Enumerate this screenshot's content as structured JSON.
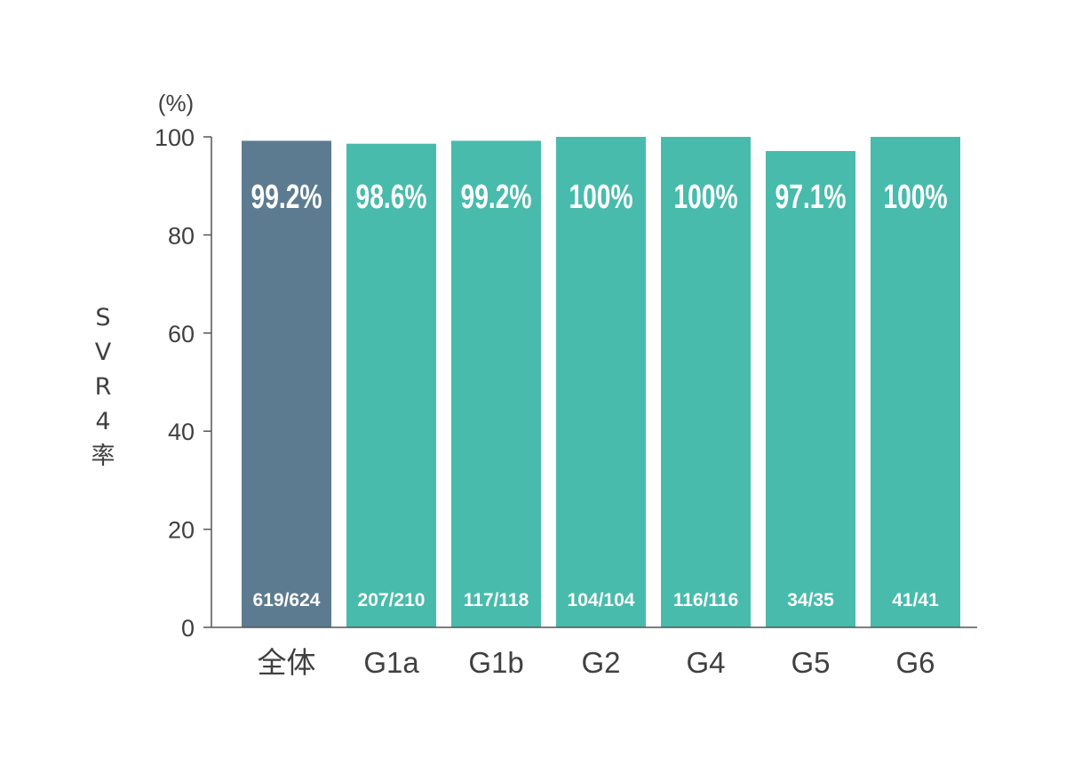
{
  "chart_data": {
    "type": "bar",
    "unit": "(%)",
    "ylabel": "SVR4率",
    "ylim": [
      0,
      100
    ],
    "yticks": [
      0,
      20,
      40,
      60,
      80,
      100
    ],
    "categories": [
      "全体",
      "G1a",
      "G1b",
      "G2",
      "G4",
      "G5",
      "G6"
    ],
    "values": [
      99.2,
      98.6,
      99.2,
      100,
      100,
      97.1,
      100
    ],
    "value_labels": [
      "99.2%",
      "98.6%",
      "99.2%",
      "100%",
      "100%",
      "97.1%",
      "100%"
    ],
    "counts": [
      "619/624",
      "207/210",
      "117/118",
      "104/104",
      "116/116",
      "34/35",
      "41/41"
    ],
    "grid": false,
    "colors": {
      "overall": "#5d7b90",
      "genotype": "#48bbac",
      "axis": "#555555",
      "text": "#404040"
    }
  }
}
